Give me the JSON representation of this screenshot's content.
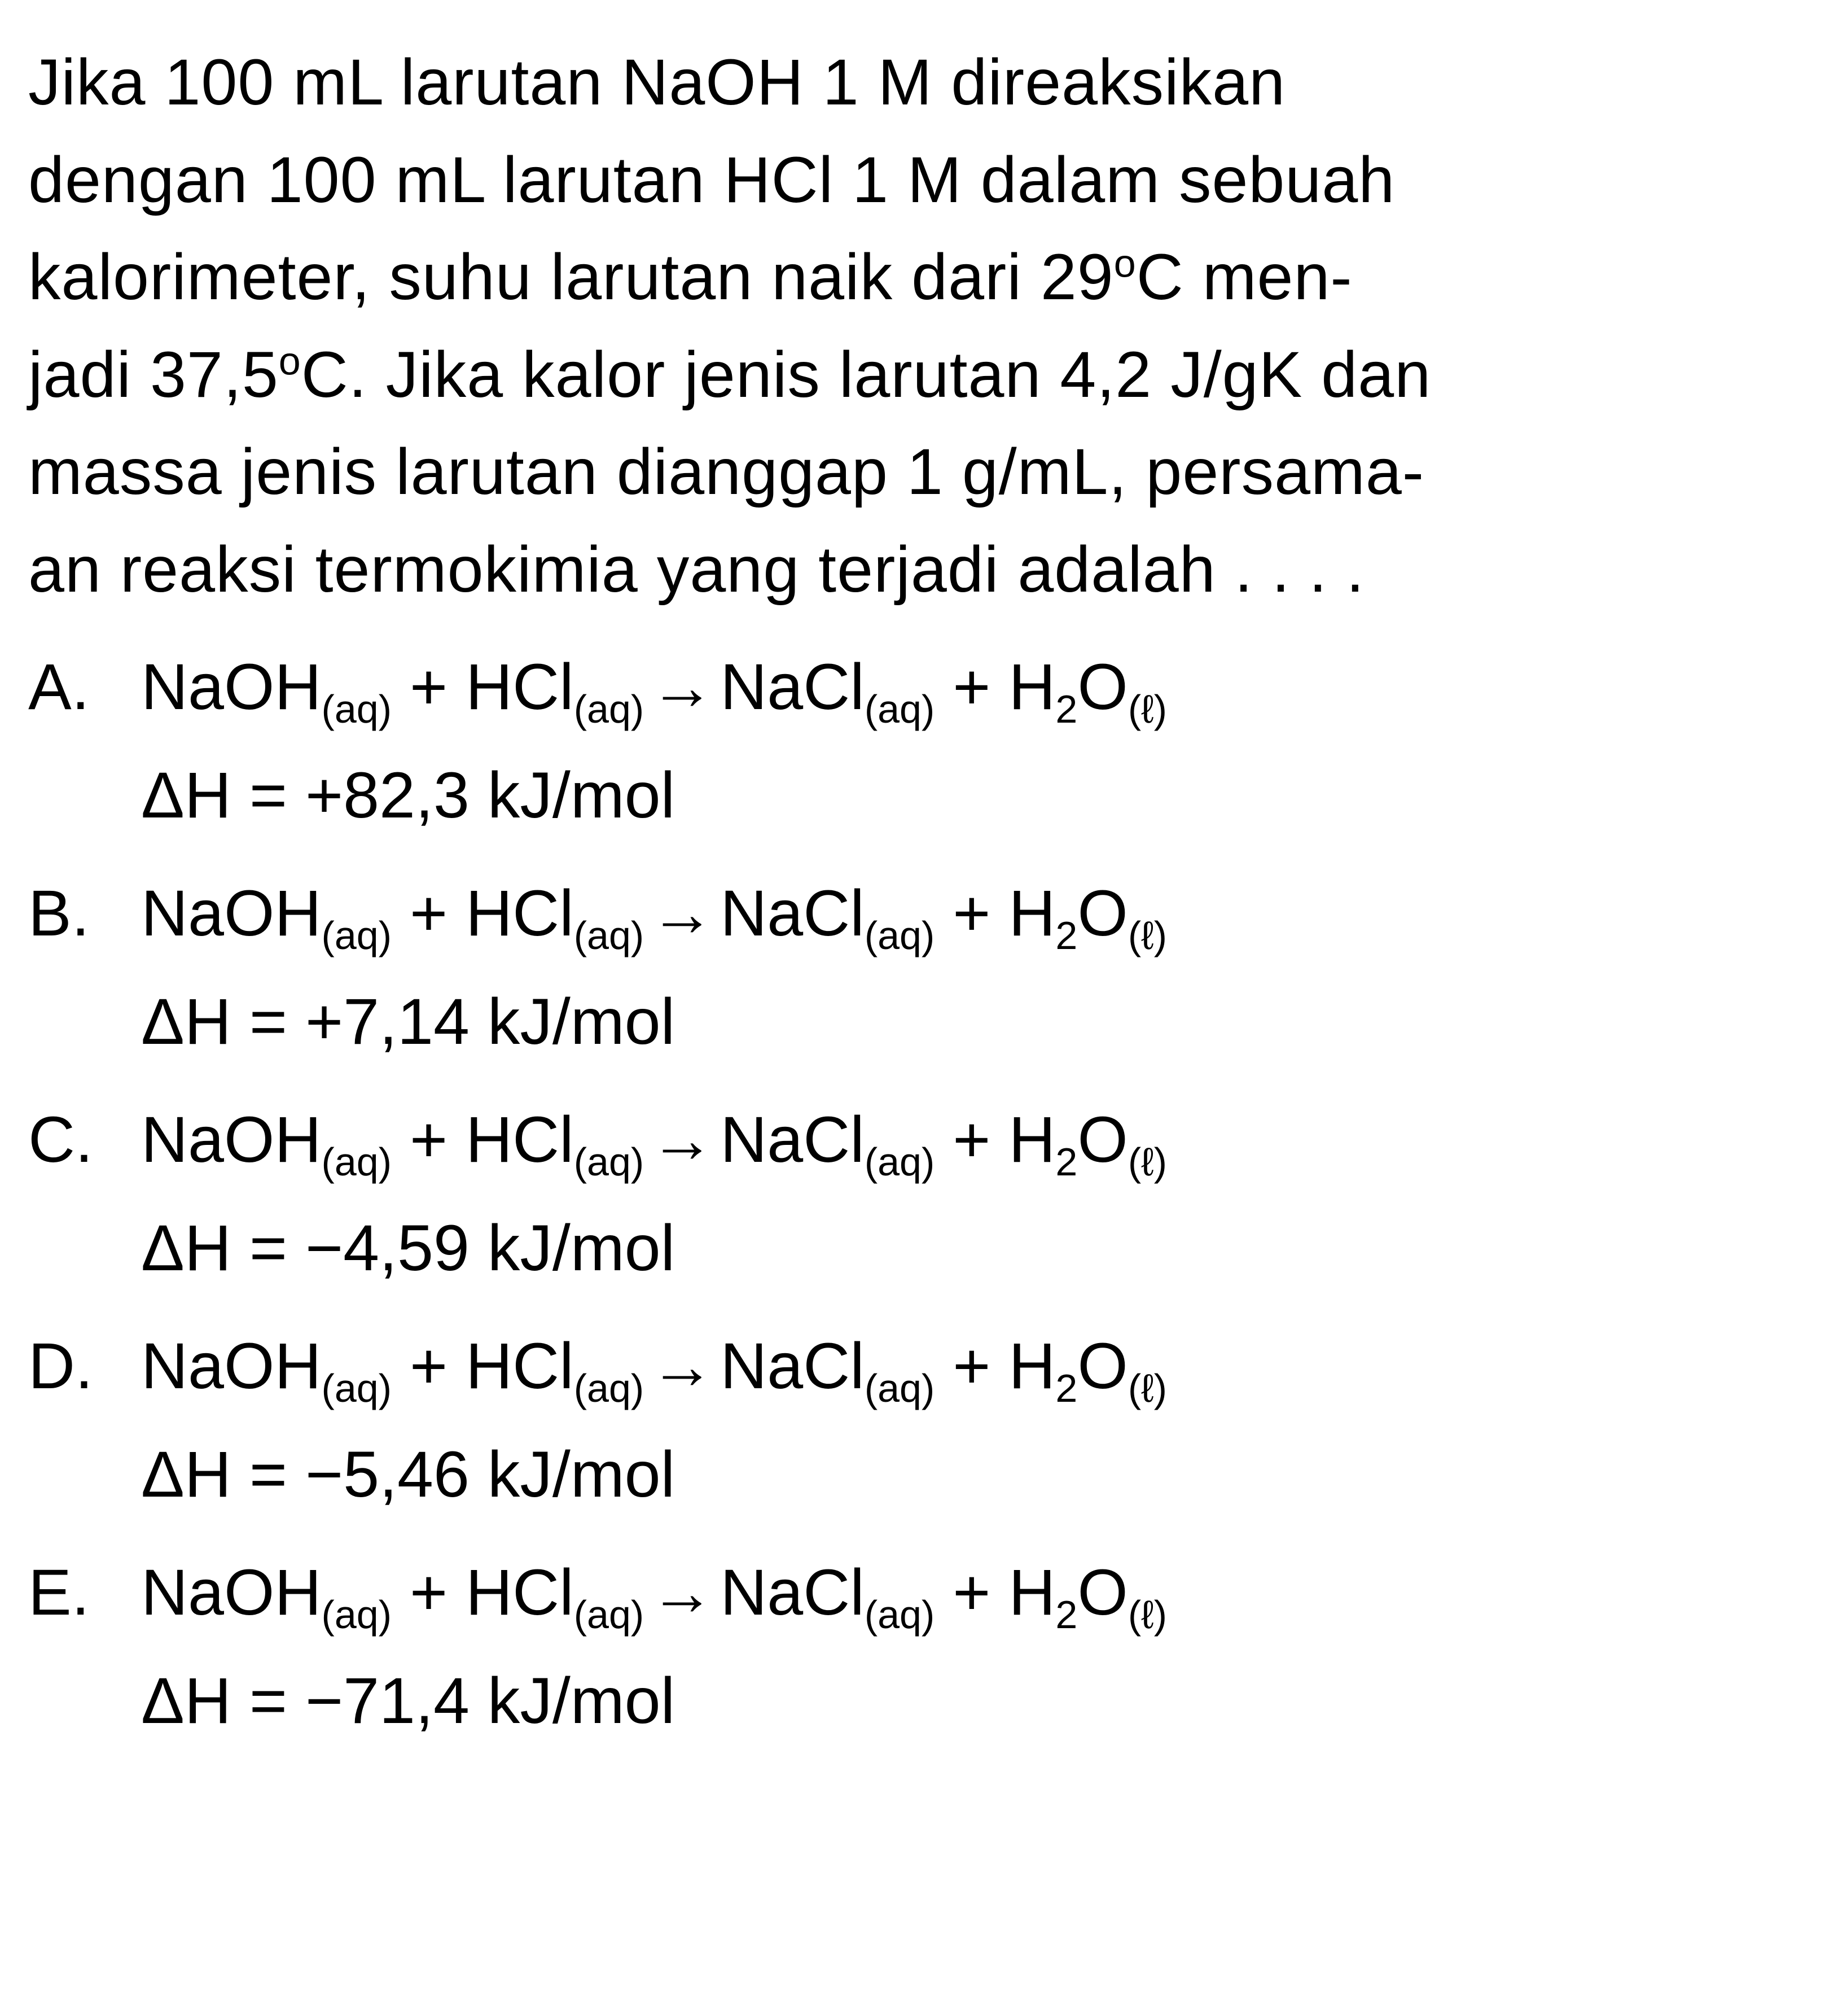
{
  "question": {
    "line1": "Jika 100 mL larutan NaOH 1 M direaksikan",
    "line2": "dengan 100 mL larutan HCl 1 M dalam sebuah",
    "line3_prefix": "kalorimeter, suhu larutan naik dari 29",
    "line3_suffix": "C men-",
    "line4_prefix": "jadi 37,5",
    "line4_suffix": "C. Jika kalor jenis larutan 4,2 J/gK dan",
    "line5": "massa jenis larutan dianggap 1 g/mL, persama-",
    "line6": "an reaksi termokimia yang terjadi adalah . . . .",
    "degree": "o"
  },
  "equation": {
    "naoh": "NaOH",
    "hcl": "HCl",
    "nacl": "NaCl",
    "h2o_h": "H",
    "h2o_2": "2",
    "h2o_o": "O",
    "aq": "(aq)",
    "liquid": "(ℓ)",
    "plus": " + ",
    "arrow": "→",
    "delta_h": "ΔH = "
  },
  "options": {
    "a": {
      "letter": "A.",
      "delta_value": "+82,3 kJ/mol"
    },
    "b": {
      "letter": "B.",
      "delta_value": "+7,14 kJ/mol"
    },
    "c": {
      "letter": "C.",
      "delta_value": "−4,59 kJ/mol"
    },
    "d": {
      "letter": "D.",
      "delta_value": "−5,46 kJ/mol"
    },
    "e": {
      "letter": "E.",
      "delta_value": "−71,4 kJ/mol"
    }
  },
  "styling": {
    "background_color": "#ffffff",
    "text_color": "#000000",
    "font_size_main": 115,
    "font_size_sub": 70,
    "font_family": "Arial",
    "line_height": 1.5
  }
}
